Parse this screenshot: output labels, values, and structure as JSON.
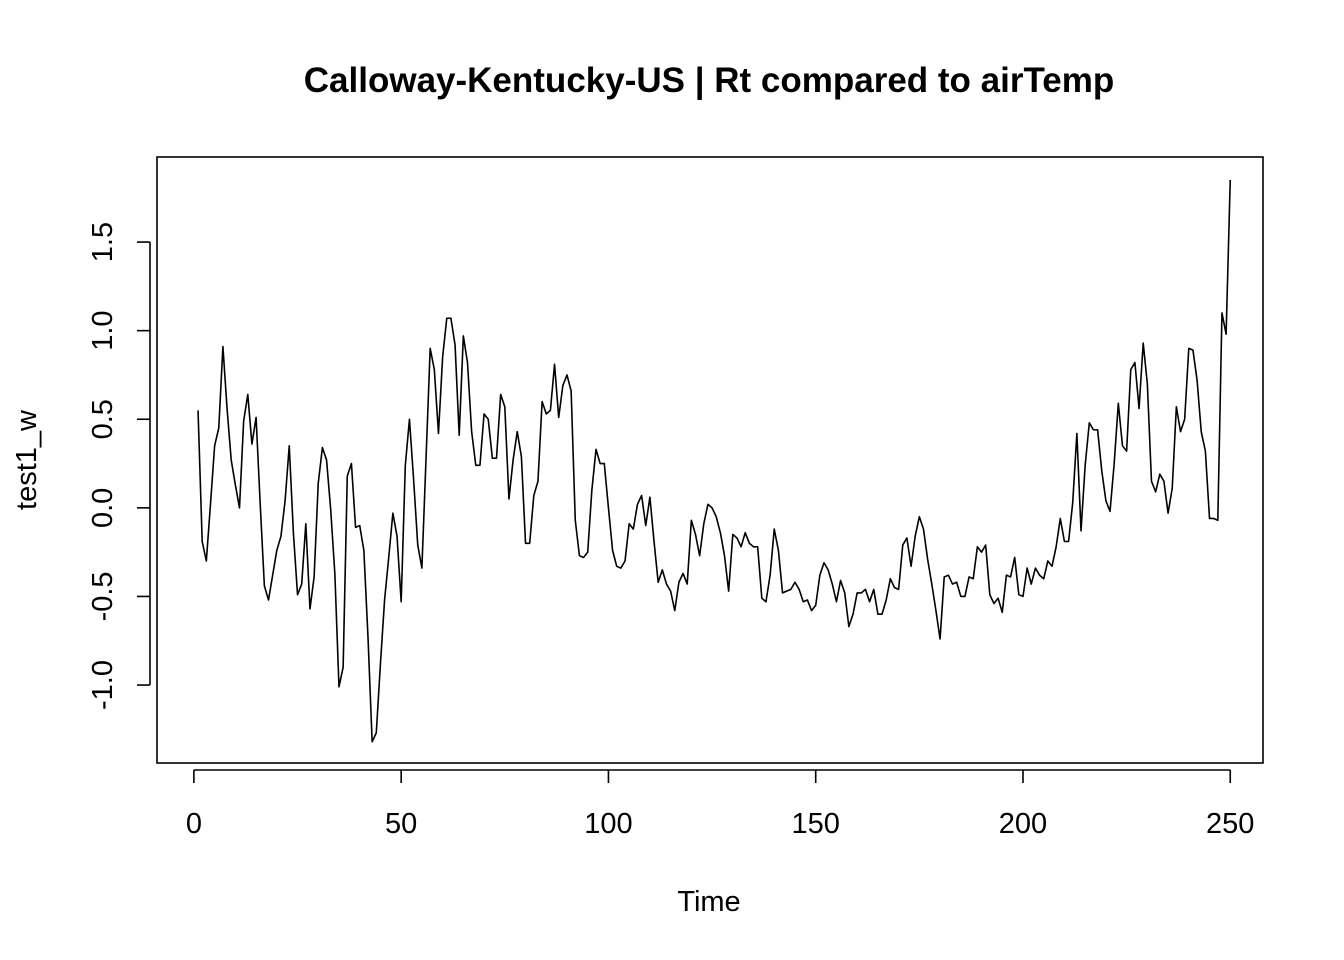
{
  "chart_data": {
    "type": "line",
    "title": "Calloway-Kentucky-US | Rt compared to airTemp",
    "xlabel": "Time",
    "ylabel": "test1_w",
    "xlim": [
      -8.9,
      257.9
    ],
    "ylim": [
      -1.44,
      1.98
    ],
    "x_ticks": [
      0,
      50,
      100,
      150,
      200,
      250
    ],
    "y_ticks": [
      -1.0,
      -0.5,
      0.0,
      0.5,
      1.0,
      1.5
    ],
    "x_tick_labels": [
      "0",
      "50",
      "100",
      "150",
      "200",
      "250"
    ],
    "y_tick_labels": [
      "-1.0",
      "-0.5",
      "0.0",
      "0.5",
      "1.0",
      "1.5"
    ],
    "grid": false,
    "line_color": "#000000",
    "series": [
      {
        "x_start": 1,
        "x_step": 1,
        "values": [
          0.55,
          -0.19,
          -0.3,
          0.02,
          0.35,
          0.45,
          0.91,
          0.56,
          0.27,
          0.13,
          0.0,
          0.49,
          0.64,
          0.36,
          0.51,
          0.02,
          -0.44,
          -0.52,
          -0.38,
          -0.24,
          -0.16,
          0.04,
          0.35,
          -0.14,
          -0.49,
          -0.43,
          -0.09,
          -0.57,
          -0.39,
          0.14,
          0.34,
          0.27,
          -0.01,
          -0.37,
          -1.01,
          -0.9,
          0.18,
          0.25,
          -0.11,
          -0.1,
          -0.24,
          -0.73,
          -1.32,
          -1.27,
          -0.88,
          -0.52,
          -0.28,
          -0.03,
          -0.16,
          -0.53,
          0.24,
          0.5,
          0.16,
          -0.21,
          -0.34,
          0.28,
          0.9,
          0.78,
          0.42,
          0.85,
          1.07,
          1.07,
          0.92,
          0.41,
          0.97,
          0.82,
          0.43,
          0.24,
          0.24,
          0.53,
          0.5,
          0.28,
          0.28,
          0.64,
          0.57,
          0.05,
          0.27,
          0.43,
          0.29,
          -0.2,
          -0.2,
          0.07,
          0.15,
          0.6,
          0.53,
          0.55,
          0.81,
          0.51,
          0.69,
          0.75,
          0.66,
          -0.07,
          -0.27,
          -0.28,
          -0.25,
          0.1,
          0.33,
          0.25,
          0.25,
          0.0,
          -0.24,
          -0.33,
          -0.34,
          -0.3,
          -0.09,
          -0.12,
          0.02,
          0.07,
          -0.1,
          0.06,
          -0.19,
          -0.42,
          -0.35,
          -0.43,
          -0.47,
          -0.58,
          -0.42,
          -0.37,
          -0.43,
          -0.07,
          -0.15,
          -0.27,
          -0.09,
          0.02,
          0.0,
          -0.05,
          -0.14,
          -0.27,
          -0.47,
          -0.15,
          -0.17,
          -0.22,
          -0.14,
          -0.2,
          -0.22,
          -0.22,
          -0.51,
          -0.53,
          -0.38,
          -0.12,
          -0.24,
          -0.48,
          -0.47,
          -0.46,
          -0.42,
          -0.46,
          -0.53,
          -0.52,
          -0.58,
          -0.55,
          -0.38,
          -0.31,
          -0.35,
          -0.43,
          -0.53,
          -0.41,
          -0.48,
          -0.67,
          -0.6,
          -0.48,
          -0.48,
          -0.46,
          -0.53,
          -0.46,
          -0.6,
          -0.6,
          -0.52,
          -0.4,
          -0.45,
          -0.46,
          -0.21,
          -0.17,
          -0.33,
          -0.16,
          -0.05,
          -0.12,
          -0.29,
          -0.43,
          -0.58,
          -0.74,
          -0.39,
          -0.38,
          -0.43,
          -0.42,
          -0.5,
          -0.5,
          -0.39,
          -0.4,
          -0.22,
          -0.25,
          -0.21,
          -0.49,
          -0.54,
          -0.51,
          -0.59,
          -0.38,
          -0.39,
          -0.28,
          -0.49,
          -0.5,
          -0.34,
          -0.43,
          -0.34,
          -0.38,
          -0.4,
          -0.3,
          -0.33,
          -0.22,
          -0.06,
          -0.19,
          -0.19,
          0.03,
          0.42,
          -0.13,
          0.24,
          0.48,
          0.44,
          0.44,
          0.21,
          0.04,
          -0.02,
          0.25,
          0.59,
          0.35,
          0.32,
          0.78,
          0.82,
          0.56,
          0.93,
          0.7,
          0.15,
          0.09,
          0.19,
          0.15,
          -0.03,
          0.11,
          0.57,
          0.43,
          0.5,
          0.9,
          0.89,
          0.72,
          0.43,
          0.32,
          -0.06,
          -0.06,
          -0.07,
          1.1,
          0.98,
          1.85
        ]
      }
    ]
  }
}
